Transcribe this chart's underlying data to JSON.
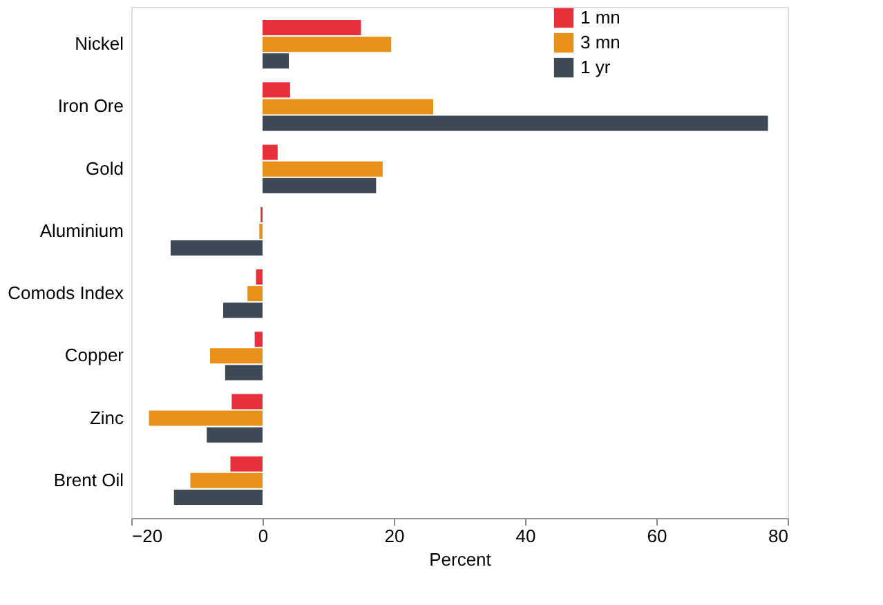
{
  "chart_data": {
    "type": "bar",
    "orientation": "horizontal",
    "xlabel": "Percent",
    "categories": [
      "Nickel",
      "Iron Ore",
      "Gold",
      "Aluminium",
      "Comods Index",
      "Copper",
      "Zinc",
      "Brent Oil"
    ],
    "series": [
      {
        "name": "1 mn",
        "color": "#e8303a",
        "values": [
          15,
          4.2,
          2.3,
          -0.3,
          -1,
          -1.2,
          -4.7,
          -4.9
        ]
      },
      {
        "name": "3 mn",
        "color": "#e8901a",
        "values": [
          19.6,
          26,
          18.3,
          -0.5,
          -2.3,
          -8,
          -17.3,
          -11
        ]
      },
      {
        "name": "1 yr",
        "color": "#3d4a55",
        "values": [
          4,
          77,
          17.3,
          -14,
          -6,
          -5.7,
          -8.5,
          -13.5
        ]
      }
    ],
    "xlim": [
      -20,
      80
    ],
    "xticks": [
      -20,
      0,
      20,
      40,
      60,
      80
    ],
    "grid": false,
    "legend": "right"
  }
}
